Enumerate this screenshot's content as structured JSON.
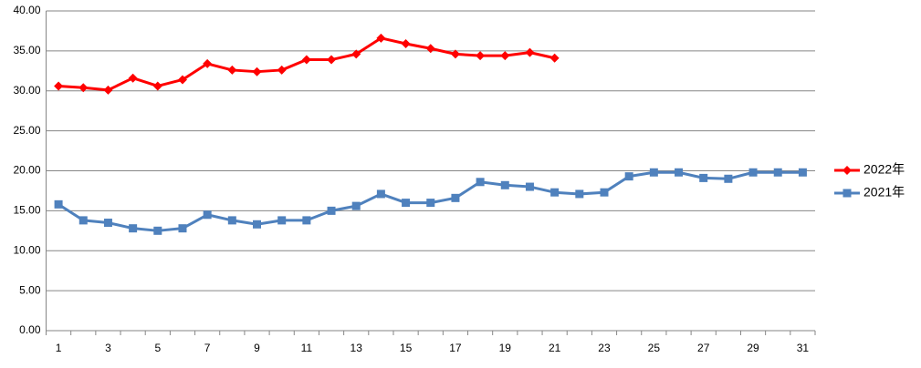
{
  "chart_data": {
    "type": "line",
    "categories": [
      "1",
      null,
      "3",
      null,
      "5",
      null,
      "7",
      null,
      "9",
      null,
      "11",
      null,
      "13",
      null,
      "15",
      null,
      "17",
      null,
      "19",
      null,
      "21",
      null,
      "23",
      null,
      "25",
      null,
      "27",
      null,
      "29",
      null,
      "31"
    ],
    "series": [
      {
        "name": "2022年",
        "color": "#ff0000",
        "marker": "diamond",
        "values": [
          30.6,
          30.4,
          30.1,
          31.6,
          30.6,
          31.4,
          33.4,
          32.6,
          32.4,
          32.6,
          33.9,
          33.9,
          34.6,
          36.6,
          35.9,
          35.3,
          34.6,
          34.4,
          34.4,
          34.8,
          34.1,
          null,
          null,
          null,
          null,
          null,
          null,
          null,
          null,
          null,
          null
        ]
      },
      {
        "name": "2021年",
        "color": "#4f81bd",
        "marker": "square",
        "values": [
          15.8,
          13.8,
          13.5,
          12.8,
          12.5,
          12.8,
          14.5,
          13.8,
          13.3,
          13.8,
          13.8,
          15.0,
          15.6,
          17.1,
          16.0,
          16.0,
          16.6,
          18.6,
          18.2,
          18.0,
          17.3,
          17.1,
          17.3,
          19.3,
          19.8,
          19.8,
          19.1,
          19.0,
          19.8,
          19.8,
          19.8
        ]
      }
    ],
    "ylim": [
      0,
      40
    ],
    "yticks": [
      {
        "value": 0,
        "label": "0.00"
      },
      {
        "value": 5,
        "label": "5.00"
      },
      {
        "value": 10,
        "label": "10.00"
      },
      {
        "value": 15,
        "label": "15.00"
      },
      {
        "value": 20,
        "label": "20.00"
      },
      {
        "value": 25,
        "label": "25.00"
      },
      {
        "value": 30,
        "label": "30.00"
      },
      {
        "value": 35,
        "label": "35.00"
      },
      {
        "value": 40,
        "label": "40.00"
      }
    ],
    "grid": true,
    "legend": "right"
  }
}
